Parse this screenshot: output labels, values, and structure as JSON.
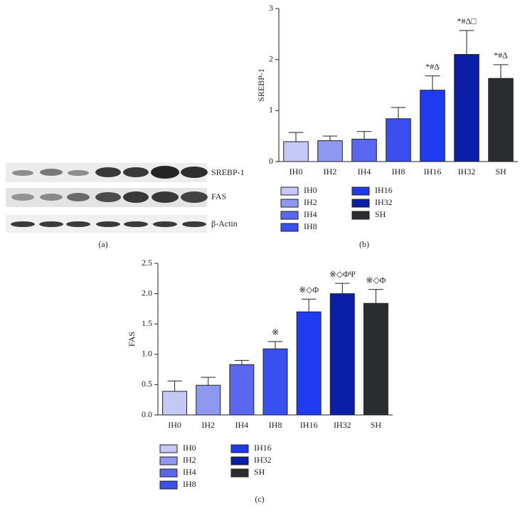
{
  "blot": {
    "labels": [
      "SREBP-1",
      "FAS",
      "β-Actin"
    ]
  },
  "panel_labels": [
    "(a)",
    "(b)",
    "(c)"
  ],
  "chart_data": [
    {
      "type": "bar",
      "y_label": "SREBP-1",
      "categories": [
        "IH0",
        "IH2",
        "IH4",
        "IH8",
        "IH16",
        "IH32",
        "SH"
      ],
      "values": [
        0.39,
        0.41,
        0.44,
        0.84,
        1.4,
        2.1,
        1.63
      ],
      "errors": [
        0.18,
        0.09,
        0.15,
        0.22,
        0.28,
        0.47,
        0.27
      ],
      "annotations": [
        null,
        null,
        null,
        null,
        "*#Δ",
        "*#Δ□",
        "*#Δ"
      ],
      "colors": [
        "#c5c8f5",
        "#8f98f0",
        "#5a68ef",
        "#3a4ff0",
        "#1f3af0",
        "#0a1ea8",
        "#2a2c30"
      ],
      "ylim": [
        0,
        3
      ],
      "yticks": [
        0,
        1,
        2,
        3
      ]
    },
    {
      "type": "bar",
      "y_label": "FAS",
      "categories": [
        "IH0",
        "IH2",
        "IH4",
        "IH8",
        "IH16",
        "IH32",
        "SH"
      ],
      "values": [
        0.39,
        0.49,
        0.83,
        1.09,
        1.7,
        2.0,
        1.84
      ],
      "errors": [
        0.17,
        0.13,
        0.07,
        0.12,
        0.21,
        0.17,
        0.23
      ],
      "annotations": [
        null,
        null,
        null,
        "※",
        "※◇Φ",
        "※◇ΦΨ",
        "※◇Φ"
      ],
      "colors": [
        "#c5c8f5",
        "#8f98f0",
        "#5a68ef",
        "#3a4ff0",
        "#1f3af0",
        "#0a1ea8",
        "#2a2c30"
      ],
      "ylim": [
        0,
        2.5
      ],
      "yticks": [
        {
          "value": 0,
          "label": "0.0"
        },
        0.5,
        {
          "value": 1,
          "label": "1.0"
        },
        1.5,
        {
          "value": 2,
          "label": "2.0"
        },
        2.5
      ]
    }
  ]
}
